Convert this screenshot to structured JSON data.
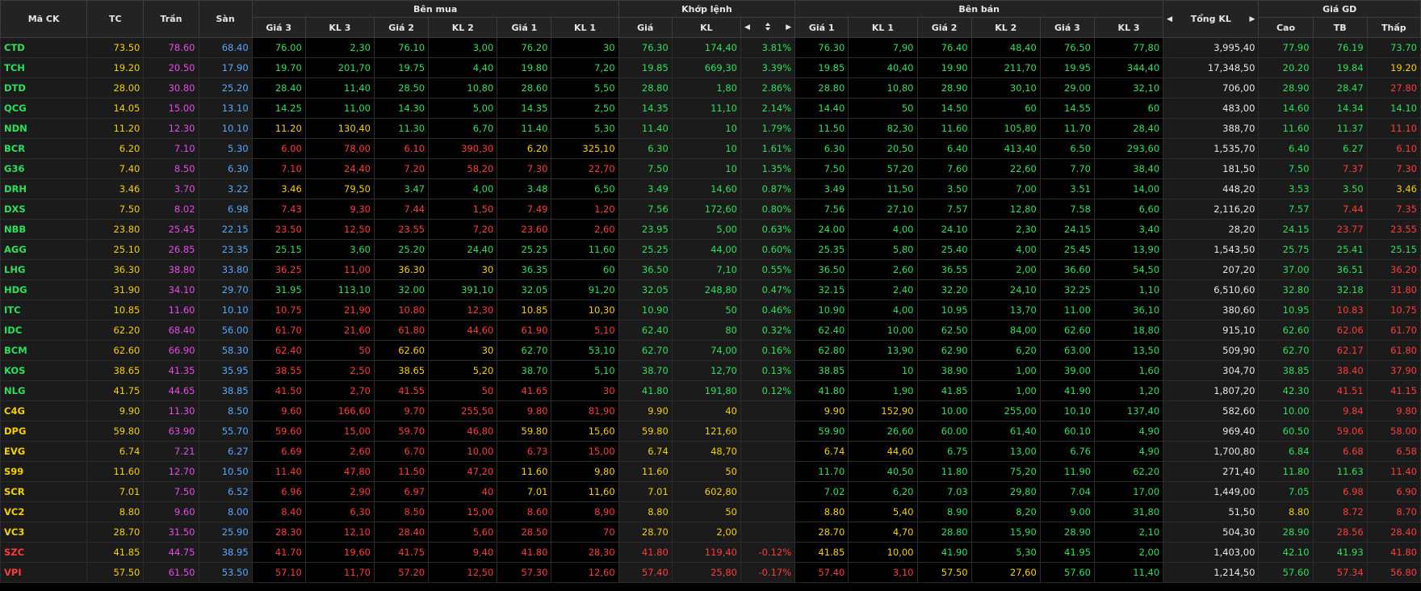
{
  "colors": {
    "green": "#2de05b",
    "red": "#ff3b3b",
    "ref": "#f5d000",
    "ceil": "#e64be8",
    "floor": "#56a8ff",
    "white": "#e6e6e6"
  },
  "icons": {
    "left": "caret-left-icon",
    "right": "caret-right-icon",
    "sort": "sort-icon"
  },
  "header": {
    "groups": {
      "code": "Mã CK",
      "ref": "TC",
      "ceil": "Trần",
      "floor": "Sàn",
      "bid": "Bên mua",
      "match": "Khớp lệnh",
      "ask": "Bên bán",
      "total": "Tổng KL",
      "price": "Giá GD"
    },
    "sub": {
      "bid": [
        "Giá 3",
        "KL 3",
        "Giá 2",
        "KL 2",
        "Giá 1",
        "KL 1"
      ],
      "match_price": "Giá",
      "match_vol": "KL",
      "ask": [
        "Giá 1",
        "KL 1",
        "Giá 2",
        "KL 2",
        "Giá 3",
        "KL 3"
      ],
      "price": [
        "Cao",
        "TB",
        "Thấp"
      ]
    }
  },
  "rows": [
    {
      "code": "CTD",
      "ref": "73.50",
      "ceil": "78.60",
      "floor": "68.40",
      "bid": [
        [
          "76.00",
          "2,30"
        ],
        [
          "76.10",
          "3,00"
        ],
        [
          "76.20",
          "30"
        ]
      ],
      "match": [
        "76.30",
        "174,40",
        "3.81%"
      ],
      "ask": [
        [
          "76.30",
          "7,90"
        ],
        [
          "76.40",
          "48,40"
        ],
        [
          "76.50",
          "77,80"
        ]
      ],
      "total": "3,995,40",
      "hi": "77.90",
      "avg": "76.19",
      "lo": "73.70"
    },
    {
      "code": "TCH",
      "ref": "19.20",
      "ceil": "20.50",
      "floor": "17.90",
      "bid": [
        [
          "19.70",
          "201,70"
        ],
        [
          "19.75",
          "4,40"
        ],
        [
          "19.80",
          "7,20"
        ]
      ],
      "match": [
        "19.85",
        "669,30",
        "3.39%"
      ],
      "ask": [
        [
          "19.85",
          "40,40"
        ],
        [
          "19.90",
          "211,70"
        ],
        [
          "19.95",
          "344,40"
        ]
      ],
      "total": "17,348,50",
      "hi": "20.20",
      "avg": "19.84",
      "lo": "19.20"
    },
    {
      "code": "DTD",
      "ref": "28.00",
      "ceil": "30.80",
      "floor": "25.20",
      "bid": [
        [
          "28.40",
          "11,40"
        ],
        [
          "28.50",
          "10,80"
        ],
        [
          "28.60",
          "5,50"
        ]
      ],
      "match": [
        "28.80",
        "1,80",
        "2.86%"
      ],
      "ask": [
        [
          "28.80",
          "10,80"
        ],
        [
          "28.90",
          "30,10"
        ],
        [
          "29.00",
          "32,10"
        ]
      ],
      "total": "706,00",
      "hi": "28.90",
      "avg": "28.47",
      "lo": "27.80"
    },
    {
      "code": "QCG",
      "ref": "14.05",
      "ceil": "15.00",
      "floor": "13.10",
      "bid": [
        [
          "14.25",
          "11,00"
        ],
        [
          "14.30",
          "5,00"
        ],
        [
          "14.35",
          "2,50"
        ]
      ],
      "match": [
        "14.35",
        "11,10",
        "2.14%"
      ],
      "ask": [
        [
          "14.40",
          "50"
        ],
        [
          "14.50",
          "60"
        ],
        [
          "14.55",
          "60"
        ]
      ],
      "total": "483,00",
      "hi": "14.60",
      "avg": "14.34",
      "lo": "14.10"
    },
    {
      "code": "NDN",
      "ref": "11.20",
      "ceil": "12.30",
      "floor": "10.10",
      "bid": [
        [
          "11.20",
          "130,40"
        ],
        [
          "11.30",
          "6,70"
        ],
        [
          "11.40",
          "5,30"
        ]
      ],
      "match": [
        "11.40",
        "10",
        "1.79%"
      ],
      "ask": [
        [
          "11.50",
          "82,30"
        ],
        [
          "11.60",
          "105,80"
        ],
        [
          "11.70",
          "28,40"
        ]
      ],
      "total": "388,70",
      "hi": "11.60",
      "avg": "11.37",
      "lo": "11.10"
    },
    {
      "code": "BCR",
      "ref": "6.20",
      "ceil": "7.10",
      "floor": "5.30",
      "bid": [
        [
          "6.00",
          "78,00"
        ],
        [
          "6.10",
          "390,30"
        ],
        [
          "6.20",
          "325,10"
        ]
      ],
      "match": [
        "6.30",
        "10",
        "1.61%"
      ],
      "ask": [
        [
          "6.30",
          "20,50"
        ],
        [
          "6.40",
          "413,40"
        ],
        [
          "6.50",
          "293,60"
        ]
      ],
      "total": "1,535,70",
      "hi": "6.40",
      "avg": "6.27",
      "lo": "6.10"
    },
    {
      "code": "G36",
      "ref": "7.40",
      "ceil": "8.50",
      "floor": "6.30",
      "bid": [
        [
          "7.10",
          "24,40"
        ],
        [
          "7.20",
          "58,20"
        ],
        [
          "7.30",
          "22,70"
        ]
      ],
      "match": [
        "7.50",
        "10",
        "1.35%"
      ],
      "ask": [
        [
          "7.50",
          "57,20"
        ],
        [
          "7.60",
          "22,60"
        ],
        [
          "7.70",
          "38,40"
        ]
      ],
      "total": "181,50",
      "hi": "7.50",
      "avg": "7.37",
      "lo": "7.30"
    },
    {
      "code": "DRH",
      "ref": "3.46",
      "ceil": "3.70",
      "floor": "3.22",
      "bid": [
        [
          "3.46",
          "79,50"
        ],
        [
          "3.47",
          "4,00"
        ],
        [
          "3.48",
          "6,50"
        ]
      ],
      "match": [
        "3.49",
        "14,60",
        "0.87%"
      ],
      "ask": [
        [
          "3.49",
          "11,50"
        ],
        [
          "3.50",
          "7,00"
        ],
        [
          "3.51",
          "14,00"
        ]
      ],
      "total": "448,20",
      "hi": "3.53",
      "avg": "3.50",
      "lo": "3.46"
    },
    {
      "code": "DXS",
      "ref": "7.50",
      "ceil": "8.02",
      "floor": "6.98",
      "bid": [
        [
          "7.43",
          "9,30"
        ],
        [
          "7.44",
          "1,50"
        ],
        [
          "7.49",
          "1,20"
        ]
      ],
      "match": [
        "7.56",
        "172,60",
        "0.80%"
      ],
      "ask": [
        [
          "7.56",
          "27,10"
        ],
        [
          "7.57",
          "12,80"
        ],
        [
          "7.58",
          "6,60"
        ]
      ],
      "total": "2,116,20",
      "hi": "7.57",
      "avg": "7.44",
      "lo": "7.35"
    },
    {
      "code": "NBB",
      "ref": "23.80",
      "ceil": "25.45",
      "floor": "22.15",
      "bid": [
        [
          "23.50",
          "12,50"
        ],
        [
          "23.55",
          "7,20"
        ],
        [
          "23.60",
          "2,60"
        ]
      ],
      "match": [
        "23.95",
        "5,00",
        "0.63%"
      ],
      "ask": [
        [
          "24.00",
          "4,00"
        ],
        [
          "24.10",
          "2,30"
        ],
        [
          "24.15",
          "3,40"
        ]
      ],
      "total": "28,20",
      "hi": "24.15",
      "avg": "23.77",
      "lo": "23.55"
    },
    {
      "code": "AGG",
      "ref": "25.10",
      "ceil": "26.85",
      "floor": "23.35",
      "bid": [
        [
          "25.15",
          "3,60"
        ],
        [
          "25.20",
          "24,40"
        ],
        [
          "25.25",
          "11,60"
        ]
      ],
      "match": [
        "25.25",
        "44,00",
        "0.60%"
      ],
      "ask": [
        [
          "25.35",
          "5,80"
        ],
        [
          "25.40",
          "4,00"
        ],
        [
          "25.45",
          "13,90"
        ]
      ],
      "total": "1,543,50",
      "hi": "25.75",
      "avg": "25.41",
      "lo": "25.15"
    },
    {
      "code": "LHG",
      "ref": "36.30",
      "ceil": "38.80",
      "floor": "33.80",
      "bid": [
        [
          "36.25",
          "11,00"
        ],
        [
          "36.30",
          "30"
        ],
        [
          "36.35",
          "60"
        ]
      ],
      "match": [
        "36.50",
        "7,10",
        "0.55%"
      ],
      "ask": [
        [
          "36.50",
          "2,60"
        ],
        [
          "36.55",
          "2,00"
        ],
        [
          "36.60",
          "54,50"
        ]
      ],
      "total": "207,20",
      "hi": "37.00",
      "avg": "36.51",
      "lo": "36.20"
    },
    {
      "code": "HDG",
      "ref": "31.90",
      "ceil": "34.10",
      "floor": "29.70",
      "bid": [
        [
          "31.95",
          "113,10"
        ],
        [
          "32.00",
          "391,10"
        ],
        [
          "32.05",
          "91,20"
        ]
      ],
      "match": [
        "32.05",
        "248,80",
        "0.47%"
      ],
      "ask": [
        [
          "32.15",
          "2,40"
        ],
        [
          "32.20",
          "24,10"
        ],
        [
          "32.25",
          "1,10"
        ]
      ],
      "total": "6,510,60",
      "hi": "32.80",
      "avg": "32.18",
      "lo": "31.80"
    },
    {
      "code": "ITC",
      "ref": "10.85",
      "ceil": "11.60",
      "floor": "10.10",
      "bid": [
        [
          "10.75",
          "21,90"
        ],
        [
          "10.80",
          "12,30"
        ],
        [
          "10.85",
          "10,30"
        ]
      ],
      "match": [
        "10.90",
        "50",
        "0.46%"
      ],
      "ask": [
        [
          "10.90",
          "4,00"
        ],
        [
          "10.95",
          "13,70"
        ],
        [
          "11.00",
          "36,10"
        ]
      ],
      "total": "380,60",
      "hi": "10.95",
      "avg": "10.83",
      "lo": "10.75"
    },
    {
      "code": "IDC",
      "ref": "62.20",
      "ceil": "68.40",
      "floor": "56.00",
      "bid": [
        [
          "61.70",
          "21,60"
        ],
        [
          "61.80",
          "44,60"
        ],
        [
          "61.90",
          "5,10"
        ]
      ],
      "match": [
        "62.40",
        "80",
        "0.32%"
      ],
      "ask": [
        [
          "62.40",
          "10,00"
        ],
        [
          "62.50",
          "84,00"
        ],
        [
          "62.60",
          "18,80"
        ]
      ],
      "total": "915,10",
      "hi": "62.60",
      "avg": "62.06",
      "lo": "61.70"
    },
    {
      "code": "BCM",
      "ref": "62.60",
      "ceil": "66.90",
      "floor": "58.30",
      "bid": [
        [
          "62.40",
          "50"
        ],
        [
          "62.60",
          "30"
        ],
        [
          "62.70",
          "53,10"
        ]
      ],
      "match": [
        "62.70",
        "74,00",
        "0.16%"
      ],
      "ask": [
        [
          "62.80",
          "13,90"
        ],
        [
          "62.90",
          "6,20"
        ],
        [
          "63.00",
          "13,50"
        ]
      ],
      "total": "509,90",
      "hi": "62.70",
      "avg": "62.17",
      "lo": "61.80"
    },
    {
      "code": "KOS",
      "ref": "38.65",
      "ceil": "41.35",
      "floor": "35.95",
      "bid": [
        [
          "38.55",
          "2,50"
        ],
        [
          "38.65",
          "5,20"
        ],
        [
          "38.70",
          "5,10"
        ]
      ],
      "match": [
        "38.70",
        "12,70",
        "0.13%"
      ],
      "ask": [
        [
          "38.85",
          "10"
        ],
        [
          "38.90",
          "1,00"
        ],
        [
          "39.00",
          "1,60"
        ]
      ],
      "total": "304,70",
      "hi": "38.85",
      "avg": "38.40",
      "lo": "37.90"
    },
    {
      "code": "NLG",
      "ref": "41.75",
      "ceil": "44.65",
      "floor": "38.85",
      "bid": [
        [
          "41.50",
          "2,70"
        ],
        [
          "41.55",
          "50"
        ],
        [
          "41.65",
          "30"
        ]
      ],
      "match": [
        "41.80",
        "191,80",
        "0.12%"
      ],
      "ask": [
        [
          "41.80",
          "1,90"
        ],
        [
          "41.85",
          "1,00"
        ],
        [
          "41.90",
          "1,20"
        ]
      ],
      "total": "1,807,20",
      "hi": "42.30",
      "avg": "41.51",
      "lo": "41.15"
    },
    {
      "code": "C4G",
      "ref": "9.90",
      "ceil": "11.30",
      "floor": "8.50",
      "bid": [
        [
          "9.60",
          "166,60"
        ],
        [
          "9.70",
          "255,50"
        ],
        [
          "9.80",
          "81,90"
        ]
      ],
      "match": [
        "9.90",
        "40",
        ""
      ],
      "ask": [
        [
          "9.90",
          "152,90"
        ],
        [
          "10.00",
          "255,00"
        ],
        [
          "10.10",
          "137,40"
        ]
      ],
      "total": "582,60",
      "hi": "10.00",
      "avg": "9.84",
      "lo": "9.80"
    },
    {
      "code": "DPG",
      "ref": "59.80",
      "ceil": "63.90",
      "floor": "55.70",
      "bid": [
        [
          "59.60",
          "15,00"
        ],
        [
          "59.70",
          "46,80"
        ],
        [
          "59.80",
          "15,60"
        ]
      ],
      "match": [
        "59.80",
        "121,60",
        ""
      ],
      "ask": [
        [
          "59.90",
          "26,60"
        ],
        [
          "60.00",
          "61,40"
        ],
        [
          "60.10",
          "4,90"
        ]
      ],
      "total": "969,40",
      "hi": "60.50",
      "avg": "59.06",
      "lo": "58.00"
    },
    {
      "code": "EVG",
      "ref": "6.74",
      "ceil": "7.21",
      "floor": "6.27",
      "bid": [
        [
          "6.69",
          "2,60"
        ],
        [
          "6.70",
          "10,00"
        ],
        [
          "6.73",
          "15,00"
        ]
      ],
      "match": [
        "6.74",
        "48,70",
        ""
      ],
      "ask": [
        [
          "6.74",
          "44,60"
        ],
        [
          "6.75",
          "13,00"
        ],
        [
          "6.76",
          "4,90"
        ]
      ],
      "total": "1,700,80",
      "hi": "6.84",
      "avg": "6.68",
      "lo": "6.58"
    },
    {
      "code": "S99",
      "ref": "11.60",
      "ceil": "12.70",
      "floor": "10.50",
      "bid": [
        [
          "11.40",
          "47,80"
        ],
        [
          "11.50",
          "47,20"
        ],
        [
          "11.60",
          "9,80"
        ]
      ],
      "match": [
        "11.60",
        "50",
        ""
      ],
      "ask": [
        [
          "11.70",
          "40,50"
        ],
        [
          "11.80",
          "75,20"
        ],
        [
          "11.90",
          "62,20"
        ]
      ],
      "total": "271,40",
      "hi": "11.80",
      "avg": "11.63",
      "lo": "11.40"
    },
    {
      "code": "SCR",
      "ref": "7.01",
      "ceil": "7.50",
      "floor": "6.52",
      "bid": [
        [
          "6.96",
          "2,90"
        ],
        [
          "6.97",
          "40"
        ],
        [
          "7.01",
          "11,60"
        ]
      ],
      "match": [
        "7.01",
        "602,80",
        ""
      ],
      "ask": [
        [
          "7.02",
          "6,20"
        ],
        [
          "7.03",
          "29,80"
        ],
        [
          "7.04",
          "17,00"
        ]
      ],
      "total": "1,449,00",
      "hi": "7.05",
      "avg": "6.98",
      "lo": "6.90"
    },
    {
      "code": "VC2",
      "ref": "8.80",
      "ceil": "9.60",
      "floor": "8.00",
      "bid": [
        [
          "8.40",
          "6,30"
        ],
        [
          "8.50",
          "15,00"
        ],
        [
          "8.60",
          "8,90"
        ]
      ],
      "match": [
        "8.80",
        "50",
        ""
      ],
      "ask": [
        [
          "8.80",
          "5,40"
        ],
        [
          "8.90",
          "8,20"
        ],
        [
          "9.00",
          "31,80"
        ]
      ],
      "total": "51,50",
      "hi": "8.80",
      "avg": "8.72",
      "lo": "8.70"
    },
    {
      "code": "VC3",
      "ref": "28.70",
      "ceil": "31.50",
      "floor": "25.90",
      "bid": [
        [
          "28.30",
          "12,10"
        ],
        [
          "28.40",
          "5,60"
        ],
        [
          "28.50",
          "70"
        ]
      ],
      "match": [
        "28.70",
        "2,00",
        ""
      ],
      "ask": [
        [
          "28.70",
          "4,70"
        ],
        [
          "28.80",
          "15,90"
        ],
        [
          "28.90",
          "2,10"
        ]
      ],
      "total": "504,30",
      "hi": "28.90",
      "avg": "28.56",
      "lo": "28.40"
    },
    {
      "code": "SZC",
      "ref": "41.85",
      "ceil": "44.75",
      "floor": "38.95",
      "bid": [
        [
          "41.70",
          "19,60"
        ],
        [
          "41.75",
          "9,40"
        ],
        [
          "41.80",
          "28,30"
        ]
      ],
      "match": [
        "41.80",
        "119,40",
        "-0.12%"
      ],
      "ask": [
        [
          "41.85",
          "10,00"
        ],
        [
          "41.90",
          "5,30"
        ],
        [
          "41.95",
          "2,00"
        ]
      ],
      "total": "1,403,00",
      "hi": "42.10",
      "avg": "41.93",
      "lo": "41.80"
    },
    {
      "code": "VPI",
      "ref": "57.50",
      "ceil": "61.50",
      "floor": "53.50",
      "bid": [
        [
          "57.10",
          "11,70"
        ],
        [
          "57.20",
          "12,50"
        ],
        [
          "57.30",
          "12,60"
        ]
      ],
      "match": [
        "57.40",
        "25,80",
        "-0.17%"
      ],
      "ask": [
        [
          "57.40",
          "3,10"
        ],
        [
          "57.50",
          "27,60"
        ],
        [
          "57.60",
          "11,40"
        ]
      ],
      "total": "1,214,50",
      "hi": "57.60",
      "avg": "57.34",
      "lo": "56.80"
    }
  ]
}
